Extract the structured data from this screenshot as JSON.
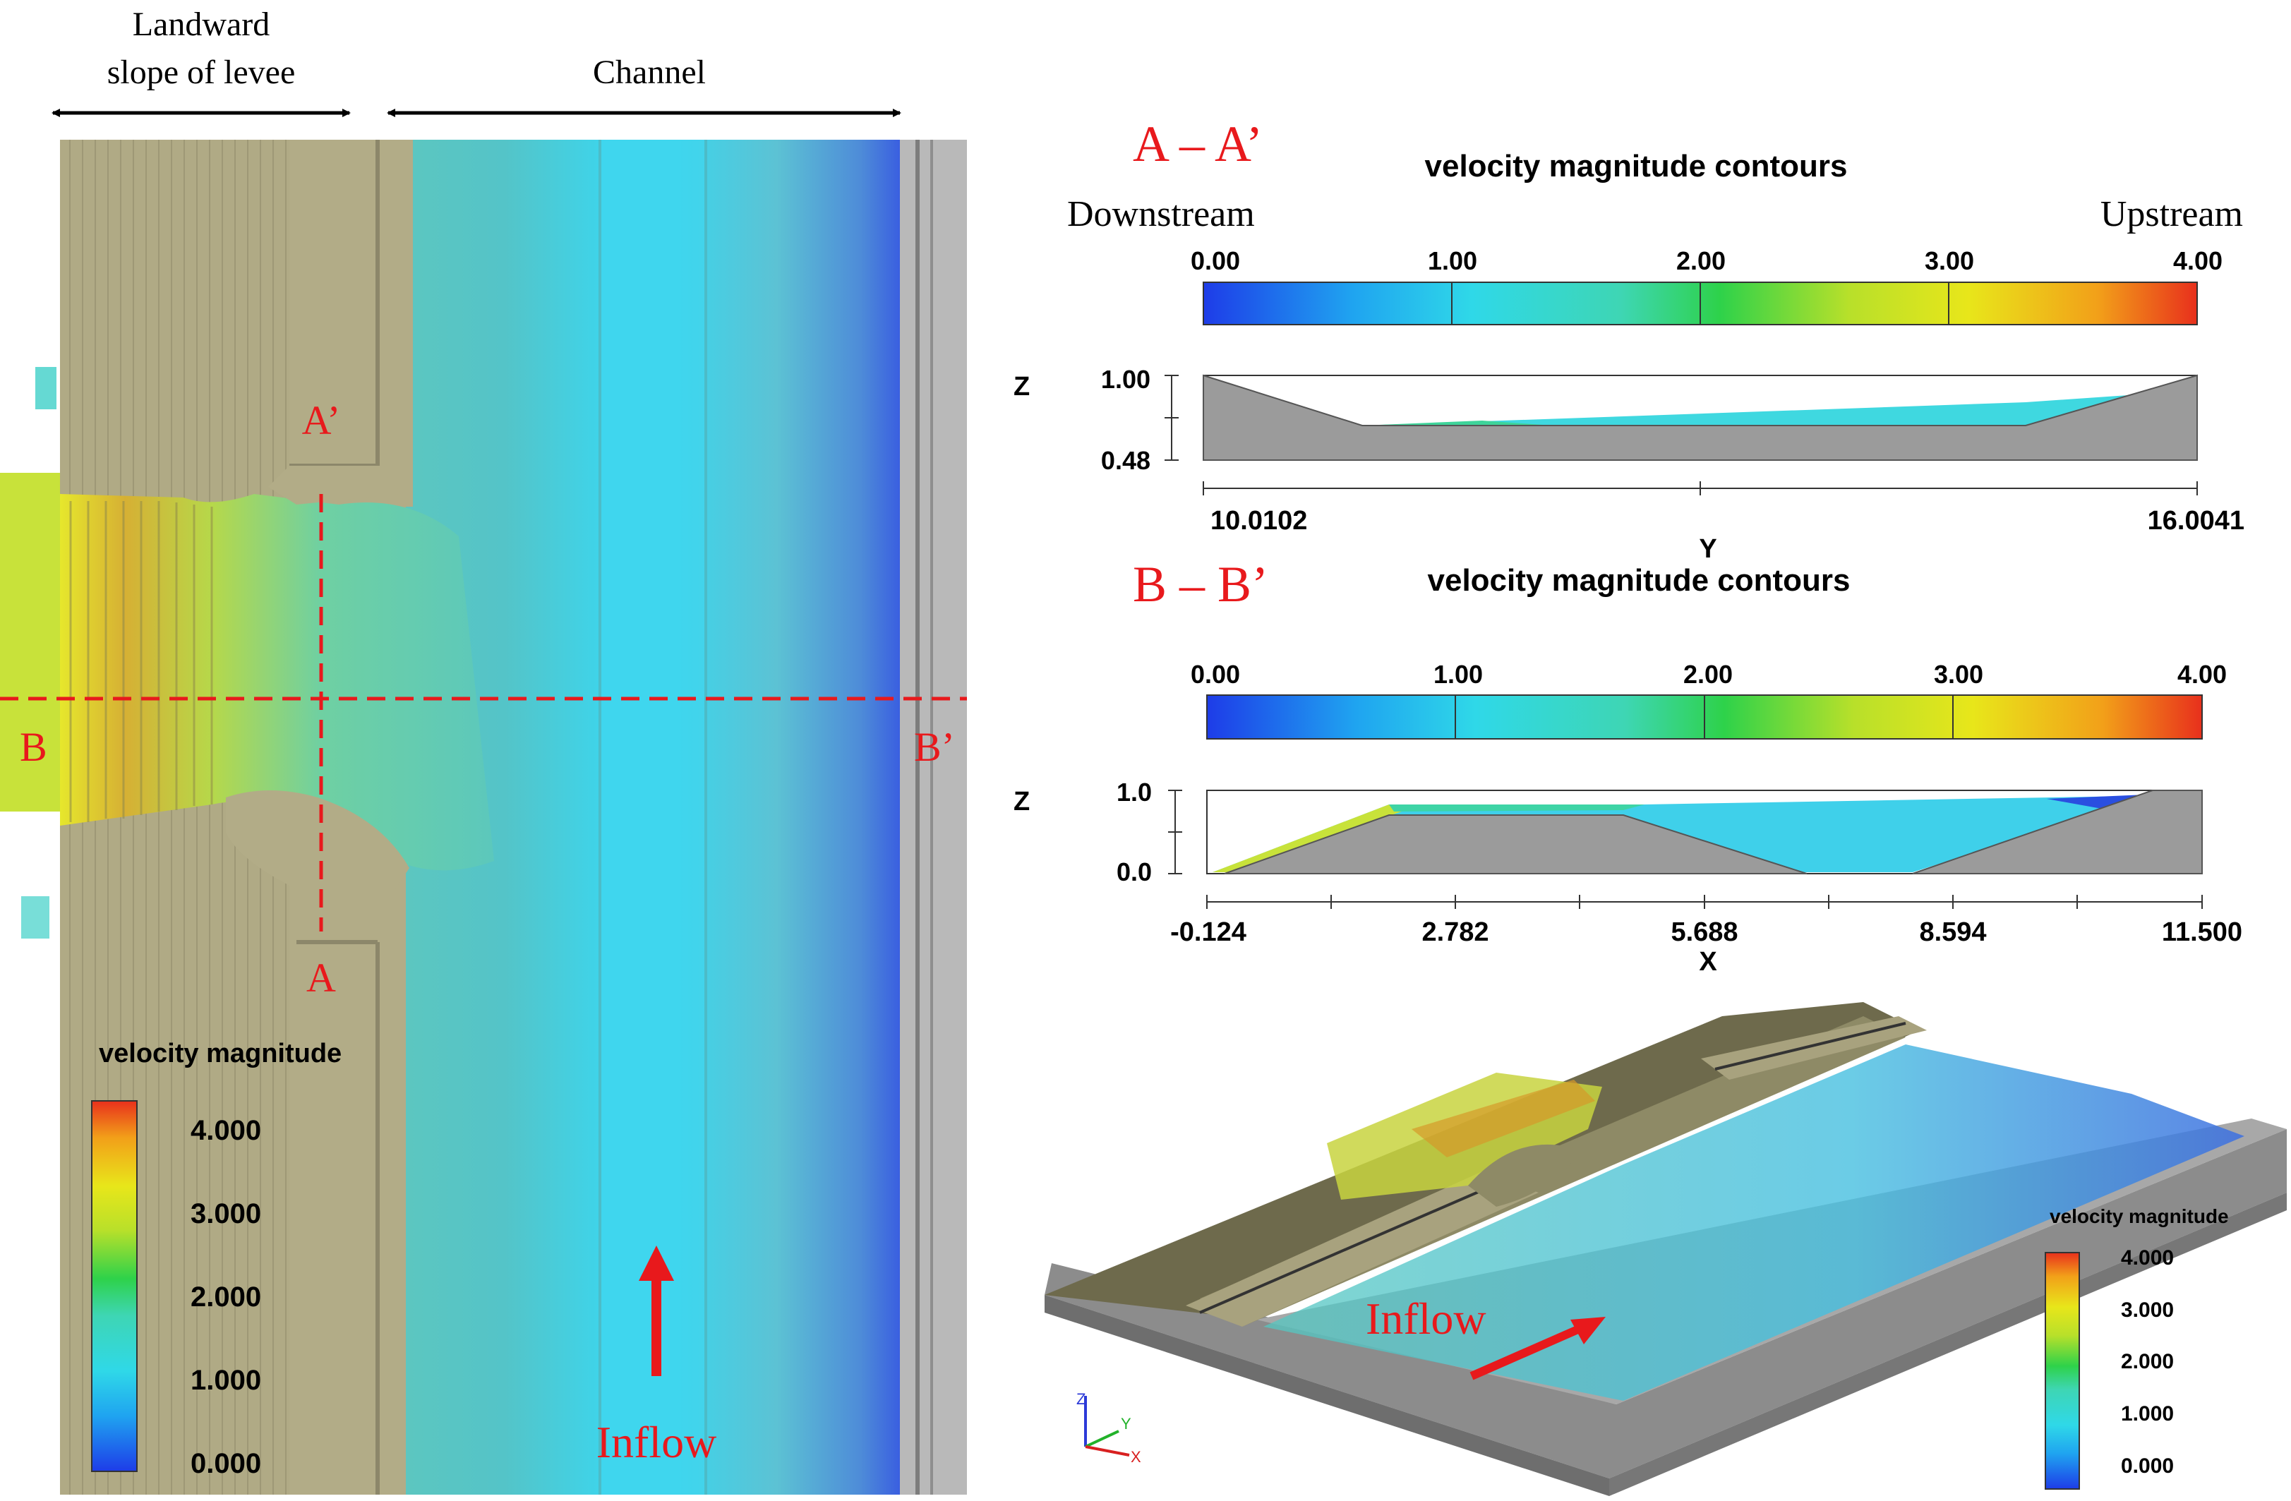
{
  "left_panel": {
    "header_slope": [
      "Landward",
      "slope of levee"
    ],
    "header_channel": "Channel",
    "label_a_prime": "A’",
    "label_a": "A",
    "label_b": "B",
    "label_b_prime": "B’",
    "inflow": "Inflow",
    "legend": {
      "title": "velocity magnitude",
      "ticks": [
        "4.000",
        "3.000",
        "2.000",
        "1.000",
        "0.000"
      ]
    }
  },
  "section_aa": {
    "label": "A – A’",
    "title": "velocity magnitude contours",
    "left_note": "Downstream",
    "right_note": "Upstream",
    "colorbar_ticks": [
      "0.00",
      "1.00",
      "2.00",
      "3.00",
      "4.00"
    ],
    "z_label": "Z",
    "z_ticks": [
      "1.00",
      "0.48"
    ],
    "axis_label": "Y",
    "axis_ticks": [
      "10.0102",
      "16.0041"
    ]
  },
  "section_bb": {
    "label": "B – B’",
    "title": "velocity magnitude contours",
    "colorbar_ticks": [
      "0.00",
      "1.00",
      "2.00",
      "3.00",
      "4.00"
    ],
    "z_label": "Z",
    "z_ticks": [
      "1.0",
      "0.0"
    ],
    "axis_label": "X",
    "axis_ticks": [
      "-0.124",
      "2.782",
      "5.688",
      "8.594",
      "11.500"
    ]
  },
  "view_3d": {
    "inflow": "Inflow",
    "triad": [
      "Z",
      "Y",
      "X"
    ],
    "legend": {
      "title": "velocity magnitude",
      "ticks": [
        "4.000",
        "3.000",
        "2.000",
        "1.000",
        "0.000"
      ]
    }
  },
  "colors": {
    "annotation_red": "#e8191c",
    "levee_khaki": "#b1ab86",
    "channel_cyan": "#3ecfe6",
    "structure_gray": "#9b9b9b"
  }
}
